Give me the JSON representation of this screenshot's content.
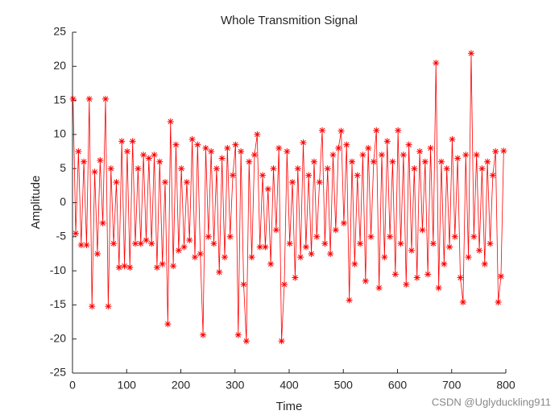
{
  "chart_data": {
    "type": "line",
    "title": "Whole Transmition Signal",
    "x_label": "Time",
    "y_label": "Amplitude",
    "watermark": "CSDN @Uglyduckling911",
    "color": "#ff0000",
    "marker": "*",
    "grid": false,
    "xlim": [
      0,
      800
    ],
    "ylim": [
      -25,
      25
    ],
    "xticks": [
      0,
      100,
      200,
      300,
      400,
      500,
      600,
      700,
      800
    ],
    "yticks": [
      -25,
      -20,
      -15,
      -10,
      -5,
      0,
      5,
      10,
      15,
      20,
      25
    ],
    "x": [
      1,
      6,
      11,
      16,
      21,
      26,
      31,
      36,
      41,
      46,
      51,
      56,
      61,
      66,
      71,
      76,
      81,
      86,
      91,
      96,
      101,
      106,
      111,
      116,
      121,
      126,
      131,
      136,
      141,
      146,
      151,
      156,
      161,
      166,
      171,
      176,
      181,
      186,
      191,
      196,
      201,
      206,
      211,
      216,
      221,
      226,
      231,
      236,
      241,
      246,
      251,
      256,
      261,
      266,
      271,
      276,
      281,
      286,
      291,
      296,
      301,
      306,
      311,
      316,
      321,
      326,
      331,
      336,
      341,
      346,
      351,
      356,
      361,
      366,
      371,
      376,
      381,
      386,
      391,
      396,
      401,
      406,
      411,
      416,
      421,
      426,
      431,
      436,
      441,
      446,
      451,
      456,
      461,
      466,
      471,
      476,
      481,
      486,
      491,
      496,
      501,
      506,
      511,
      516,
      521,
      526,
      531,
      536,
      541,
      546,
      551,
      556,
      561,
      566,
      571,
      576,
      581,
      586,
      591,
      596,
      601,
      606,
      611,
      616,
      621,
      626,
      631,
      636,
      641,
      646,
      651,
      656,
      661,
      666,
      671,
      676,
      681,
      686,
      691,
      696,
      701,
      706,
      711,
      716,
      721,
      726,
      731,
      736,
      741,
      746,
      751,
      756,
      761,
      766,
      771,
      776,
      781,
      786,
      791,
      796
    ],
    "values": [
      15.2,
      -4.5,
      7.5,
      -6.2,
      6,
      -6.2,
      15.2,
      -15.2,
      4.5,
      -7.5,
      6.2,
      -3,
      15.2,
      -15.2,
      5,
      -6,
      3,
      -9.5,
      9,
      -9.3,
      7.5,
      -9.5,
      9,
      -6,
      5,
      -6,
      7,
      -5.5,
      6.5,
      -6,
      7,
      -9.5,
      6,
      -9,
      3,
      -17.8,
      11.9,
      -9.3,
      8.5,
      -7,
      5,
      -6.5,
      3,
      -5.5,
      9.3,
      -8,
      8.5,
      -7.5,
      -19.4,
      8,
      -5,
      7.5,
      -6,
      5,
      -10.2,
      6.5,
      -8,
      8,
      -5,
      4,
      8.5,
      -19.4,
      7.5,
      -12,
      -20.3,
      6,
      -8,
      7,
      10,
      -6.5,
      4,
      -6.5,
      2,
      -9,
      5,
      -4,
      8,
      -20.3,
      -12,
      7.5,
      -6,
      3,
      -11,
      5,
      -8,
      8.8,
      -6.5,
      4,
      -7.5,
      6,
      -5,
      3,
      10.6,
      -6,
      5,
      -7.5,
      7,
      -4,
      8,
      10.5,
      -3,
      8.5,
      -14.3,
      6,
      -9,
      4,
      -6,
      7,
      -11.5,
      8,
      -5,
      6,
      10.6,
      -12.5,
      7,
      -8,
      9,
      -5,
      6,
      -10.5,
      10.6,
      -6,
      7,
      -12,
      8.5,
      -7,
      5,
      -11,
      7.5,
      -4,
      6,
      -10.5,
      8,
      -6,
      20.5,
      -12.5,
      6,
      -9,
      5,
      -6.5,
      9.3,
      -5,
      6.5,
      -11,
      -14.6,
      7,
      -8,
      21.9,
      -5,
      7,
      -7,
      5,
      -9,
      6,
      -6,
      4,
      7.5,
      -14.6,
      -10.8,
      7.6
    ]
  }
}
